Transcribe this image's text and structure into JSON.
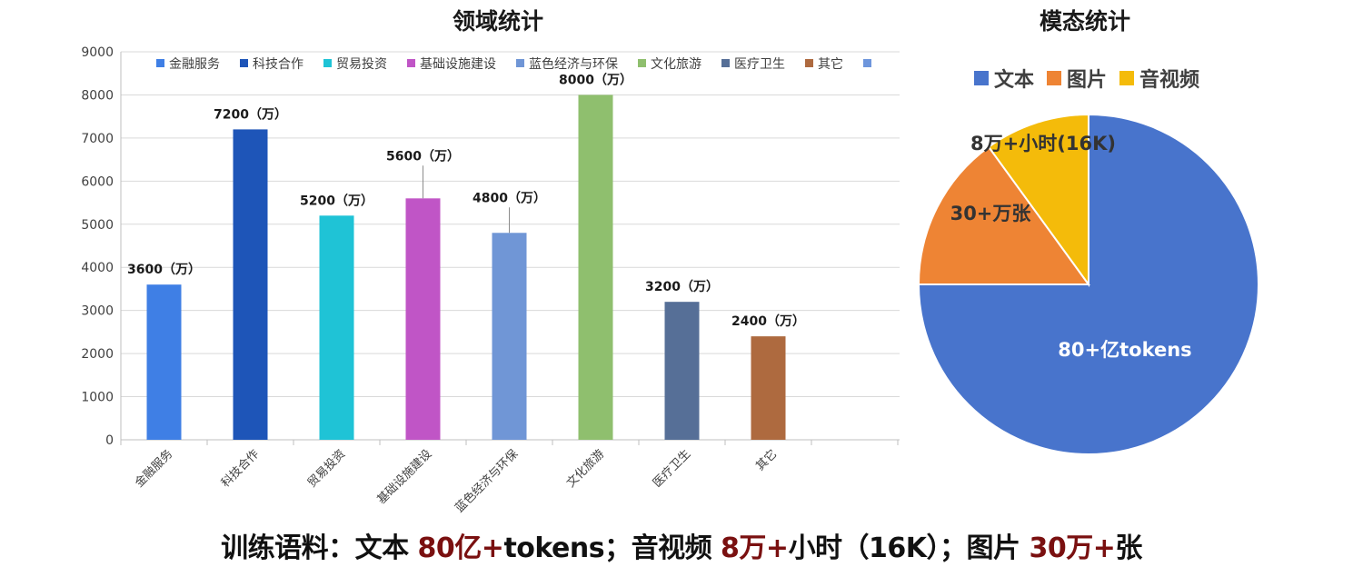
{
  "chart_data": [
    {
      "type": "bar",
      "title": "领域统计",
      "categories": [
        "金融服务",
        "科技合作",
        "贸易投资",
        "基础设施建设",
        "蓝色经济与环保",
        "文化旅游",
        "医疗卫生",
        "其它"
      ],
      "values": [
        3600,
        7200,
        5200,
        5600,
        4800,
        8000,
        3200,
        2400
      ],
      "value_suffix": "（万）",
      "colors": [
        "#3f7fe5",
        "#1e55b8",
        "#1fc3d6",
        "#c055c6",
        "#7096d6",
        "#8fbf6e",
        "#566f97",
        "#ae6a3f",
        "#6e96dc"
      ],
      "legend": [
        "金融服务",
        "科技合作",
        "贸易投资",
        "基础设施建设",
        "蓝色经济与环保",
        "文化旅游",
        "医疗卫生",
        "其它",
        ""
      ],
      "legend_position": "top",
      "yticks": [
        0,
        1000,
        2000,
        3000,
        4000,
        5000,
        6000,
        7000,
        8000,
        9000
      ],
      "ylim": [
        0,
        9000
      ],
      "xlabel": "",
      "ylabel": "",
      "grid": true
    },
    {
      "type": "pie",
      "title": "模态统计",
      "labels": [
        "文本",
        "图片",
        "音视频"
      ],
      "values": [
        75,
        15,
        10
      ],
      "slice_labels": [
        "80+亿tokens",
        "30+万张",
        "8万+小时(16K)"
      ],
      "colors": [
        "#4874cc",
        "#ee8434",
        "#f4bb0a"
      ],
      "legend_position": "top"
    }
  ],
  "caption": {
    "prefix": "训练语料：文本 ",
    "text_value": "80亿+",
    "text_unit": "tokens；音视频 ",
    "av_value": "8万+",
    "av_unit": "小时（16K）；图片 ",
    "img_value": "30万+",
    "img_unit": "张"
  }
}
